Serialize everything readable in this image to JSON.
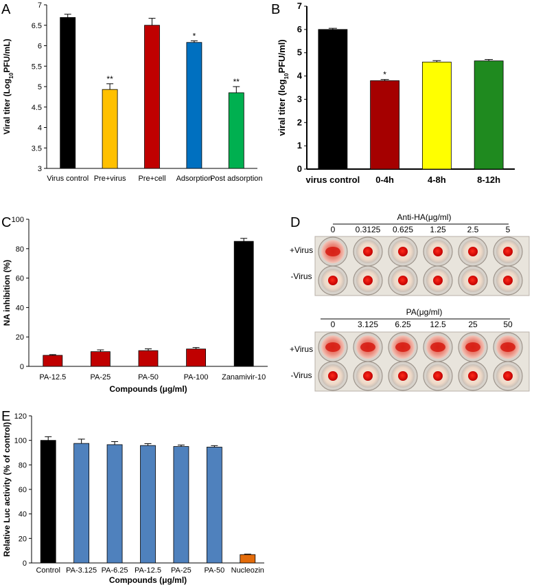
{
  "panel_letters": {
    "A": "A",
    "B": "B",
    "C": "C",
    "D": "D",
    "E": "E"
  },
  "colors": {
    "black": "#000000",
    "orange": "#FFC000",
    "red": "#C00000",
    "blue": "#0070C0",
    "green": "#00B050",
    "darkred": "#A50000",
    "yellow": "#FFFF00",
    "dkgreen": "#1F8A1F",
    "steel": "#4F81BD",
    "nucleo": "#E46C0A"
  },
  "chart_data": [
    {
      "id": "A",
      "type": "bar",
      "title": "",
      "ylabel_pre": "Viral titer (Log",
      "ylabel_sub": "10",
      "ylabel_post": "PFU/mL)",
      "xlabel": "",
      "ylim": [
        3,
        7
      ],
      "yticks": [
        "3",
        "3.5",
        "4",
        "4.5",
        "5",
        "5.5",
        "6",
        "6.5",
        "7"
      ],
      "categories": [
        "Virus control",
        "Pre+virus",
        "Pre+cell",
        "Adsorption",
        "Post adsorption"
      ],
      "values": [
        6.69,
        4.93,
        6.5,
        6.08,
        4.85
      ],
      "errors": [
        0.08,
        0.14,
        0.17,
        0.04,
        0.15
      ],
      "annotations": [
        "",
        "**",
        "",
        "*",
        "**"
      ],
      "colors": [
        "#000000",
        "#FFC000",
        "#C00000",
        "#0070C0",
        "#00B050"
      ]
    },
    {
      "id": "B",
      "type": "bar",
      "title": "",
      "ylabel_pre": "viral titer (log",
      "ylabel_sub": "10",
      "ylabel_post": "PFU/ml)",
      "xlabel": "",
      "ylim": [
        0,
        7
      ],
      "yticks": [
        "0",
        "1",
        "2",
        "3",
        "4",
        "5",
        "6",
        "7"
      ],
      "categories": [
        "virus control",
        "0-4h",
        "4-8h",
        "8-12h"
      ],
      "values": [
        6.0,
        3.8,
        4.6,
        4.65
      ],
      "errors": [
        0.05,
        0.05,
        0.06,
        0.06
      ],
      "annotations": [
        "",
        "*",
        "",
        ""
      ],
      "colors": [
        "#000000",
        "#A50000",
        "#FFFF00",
        "#1F8A1F"
      ]
    },
    {
      "id": "C",
      "type": "bar",
      "title": "",
      "ylabel": "NA inhibition (%)",
      "xlabel": "Compounds (μg/ml)",
      "ylim": [
        0,
        100
      ],
      "yticks": [
        "0",
        "20",
        "40",
        "60",
        "80",
        "100"
      ],
      "categories": [
        "PA-12.5",
        "PA-25",
        "PA-50",
        "PA-100",
        "Zanamivir-10"
      ],
      "values": [
        7.5,
        10,
        10.7,
        11.8,
        85
      ],
      "errors": [
        0.5,
        1.2,
        1.2,
        1.0,
        2.0
      ],
      "annotations": [
        "",
        "",
        "",
        "",
        ""
      ],
      "colors": [
        "#C00000",
        "#C00000",
        "#C00000",
        "#C00000",
        "#000000"
      ]
    },
    {
      "id": "E",
      "type": "bar",
      "title": "",
      "ylabel": "Relative Luc activity (% of control)",
      "xlabel": "Compounds (μg/ml)",
      "ylim": [
        0,
        120
      ],
      "yticks": [
        "0",
        "20",
        "40",
        "60",
        "80",
        "100",
        "120"
      ],
      "categories": [
        "Control",
        "PA-3.125",
        "PA-6.25",
        "PA-12.5",
        "PA-25",
        "PA-50",
        "Nucleozin"
      ],
      "values": [
        100,
        97.5,
        96.5,
        95.8,
        95,
        94.5,
        6.8
      ],
      "errors": [
        3,
        3.5,
        2.5,
        1.5,
        1.2,
        1.2,
        0.4
      ],
      "annotations": [
        "",
        "",
        "",
        "",
        "",
        "",
        ""
      ],
      "colors": [
        "#000000",
        "#4F81BD",
        "#4F81BD",
        "#4F81BD",
        "#4F81BD",
        "#4F81BD",
        "#E46C0A"
      ]
    }
  ],
  "panel_d": {
    "top": {
      "title": "Anti-HA(μg/ml)",
      "concentrations": [
        "0",
        "0.3125",
        "0.625",
        "1.25",
        "2.5",
        "5"
      ],
      "rows": [
        "+Virus",
        "-Virus"
      ]
    },
    "bottom": {
      "title": "PA(μg/ml)",
      "concentrations": [
        "0",
        "3.125",
        "6.25",
        "12.5",
        "25",
        "50"
      ],
      "rows": [
        "+Virus",
        "-Virus"
      ]
    }
  }
}
